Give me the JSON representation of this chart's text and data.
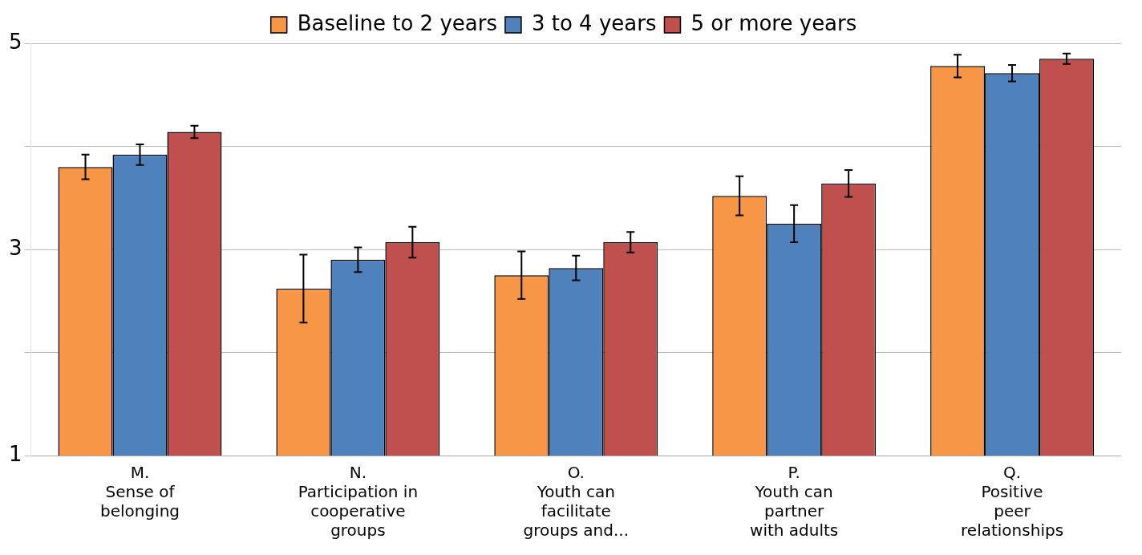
{
  "chart_data": {
    "type": "bar",
    "categories": [
      "M.\nSense of\nbelonging",
      "N.\nParticipation in\ncooperative\ngroups",
      "O.\nYouth can\nfacilitate\ngroups and...",
      "P.\nYouth can\npartner\nwith adults",
      "Q.\nPositive\npeer\nrelationships"
    ],
    "series": [
      {
        "name": "Baseline to 2 years",
        "color": "#f79646",
        "values": [
          3.8,
          2.62,
          2.75,
          3.52,
          4.78
        ],
        "errors": [
          0.12,
          0.33,
          0.23,
          0.19,
          0.11
        ]
      },
      {
        "name": "3 to 4 years",
        "color": "#4f81bd",
        "values": [
          3.92,
          2.9,
          2.82,
          3.25,
          4.71
        ],
        "errors": [
          0.1,
          0.12,
          0.12,
          0.18,
          0.08
        ]
      },
      {
        "name": "5 or more years",
        "color": "#c0504d",
        "values": [
          4.14,
          3.07,
          3.07,
          3.64,
          4.85
        ],
        "errors": [
          0.06,
          0.15,
          0.1,
          0.13,
          0.05
        ]
      }
    ],
    "ylim": [
      1,
      5
    ],
    "yticks": [
      1,
      {
        "value": 2,
        "label": null
      },
      3,
      {
        "value": 4,
        "label": null
      },
      5
    ],
    "grid": "y",
    "legend": "top"
  }
}
